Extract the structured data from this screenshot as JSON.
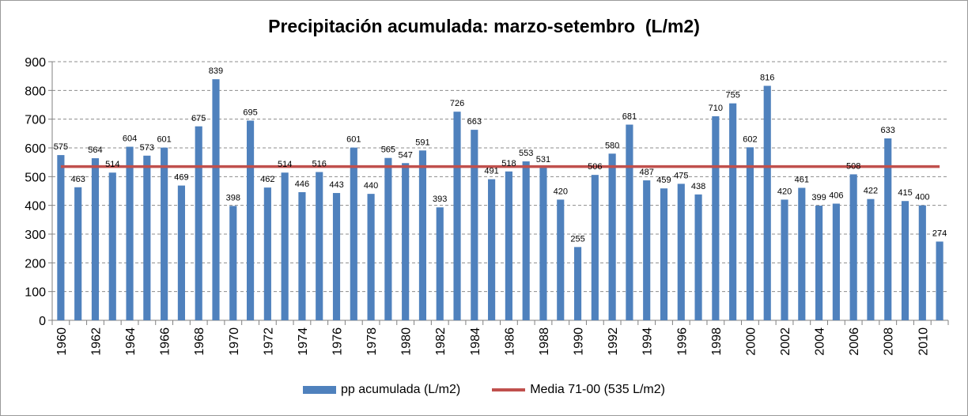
{
  "chart_data": {
    "type": "bar",
    "title": "Precipitación acumulada: marzo-setembro  (L/m2)",
    "categories": [
      1960,
      1961,
      1962,
      1963,
      1964,
      1965,
      1966,
      1967,
      1968,
      1969,
      1970,
      1971,
      1972,
      1973,
      1974,
      1975,
      1976,
      1977,
      1978,
      1979,
      1980,
      1981,
      1982,
      1983,
      1984,
      1985,
      1986,
      1987,
      1988,
      1989,
      1990,
      1991,
      1992,
      1993,
      1994,
      1995,
      1996,
      1997,
      1998,
      1999,
      2000,
      2001,
      2002,
      2003,
      2004,
      2005,
      2006,
      2007,
      2008,
      2009,
      2010,
      2011
    ],
    "x_tick_labels": [
      "1960",
      "1962",
      "1964",
      "1966",
      "1968",
      "1970",
      "1972",
      "1974",
      "1976",
      "1978",
      "1980",
      "1982",
      "1984",
      "1986",
      "1988",
      "1990",
      "1992",
      "1994",
      "1996",
      "1998",
      "2000",
      "2002",
      "2004",
      "2006",
      "2008",
      "2010"
    ],
    "series": [
      {
        "name": "pp acumulada (L/m2)",
        "type": "bar",
        "color": "#4f81bd",
        "values": [
          575,
          463,
          564,
          514,
          604,
          573,
          601,
          469,
          675,
          839,
          398,
          695,
          462,
          514,
          446,
          516,
          443,
          601,
          440,
          565,
          547,
          591,
          393,
          726,
          663,
          491,
          518,
          553,
          531,
          420,
          255,
          506,
          580,
          681,
          487,
          459,
          475,
          438,
          710,
          755,
          602,
          816,
          420,
          461,
          399,
          406,
          508,
          422,
          633,
          415,
          400,
          274
        ]
      },
      {
        "name": "Media 71-00 (535 L/m2)",
        "type": "line",
        "color": "#c0504d",
        "value": 535
      }
    ],
    "y_ticks": [
      0,
      100,
      200,
      300,
      400,
      500,
      600,
      700,
      800,
      900
    ],
    "ylim": [
      0,
      900
    ],
    "xlabel": "",
    "ylabel": "",
    "grid": true,
    "legend_position": "bottom"
  }
}
